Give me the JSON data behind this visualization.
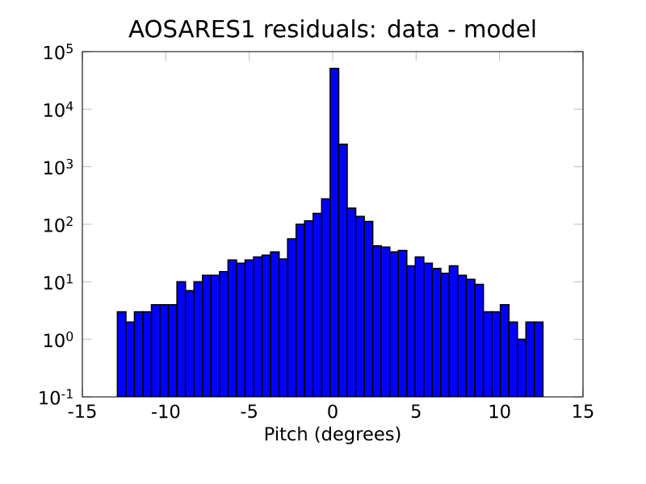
{
  "chart_data": {
    "type": "histogram",
    "title": "AOSARES1 residuals: data - model",
    "xlabel": "Pitch (degrees)",
    "bins": [
      -12.9,
      -12.39,
      -11.88,
      -11.37,
      -10.86,
      -10.35,
      -9.84,
      -9.33,
      -8.82,
      -8.31,
      -7.8,
      -7.29,
      -6.78,
      -6.27,
      -5.76,
      -5.25,
      -4.74,
      -4.23,
      -3.72,
      -3.21,
      -2.7,
      -2.19,
      -1.68,
      -1.17,
      -0.66,
      -0.15,
      0.36,
      0.87,
      1.38,
      1.89,
      2.4,
      2.91,
      3.42,
      3.93,
      4.44,
      4.95,
      5.46,
      5.97,
      6.48,
      6.99,
      7.5,
      8.01,
      8.52,
      9.03,
      9.54,
      10.05,
      10.56,
      11.07,
      11.58,
      12.09,
      12.6
    ],
    "values": [
      3,
      2,
      3,
      3,
      4,
      4,
      4,
      10,
      7,
      10,
      13,
      13,
      15,
      24,
      21,
      24,
      27,
      29,
      33,
      25,
      56,
      100,
      115,
      155,
      275,
      51000,
      2450,
      190,
      137,
      112,
      42,
      40,
      33,
      35,
      19,
      27,
      21,
      17,
      14,
      19,
      13,
      11,
      9,
      3,
      3,
      4,
      2,
      1,
      2,
      2
    ],
    "color": "#0000ff",
    "log": "y",
    "xlim": [
      -15,
      15
    ],
    "ylim": [
      0.1,
      100000
    ],
    "xticks": [
      -15,
      -10,
      -5,
      0,
      5,
      10,
      15
    ],
    "yticks": [
      {
        "value": 0.1,
        "label": "10$^{-1}$"
      },
      {
        "value": 1,
        "label": "10$^{0}$"
      },
      {
        "value": 10,
        "label": "10$^{1}$"
      },
      {
        "value": 100,
        "label": "10$^{2}$"
      },
      {
        "value": 1000,
        "label": "10$^{3}$"
      },
      {
        "value": 10000,
        "label": "10$^{4}$"
      },
      {
        "value": 100000,
        "label": "10$^{5}$"
      }
    ]
  }
}
